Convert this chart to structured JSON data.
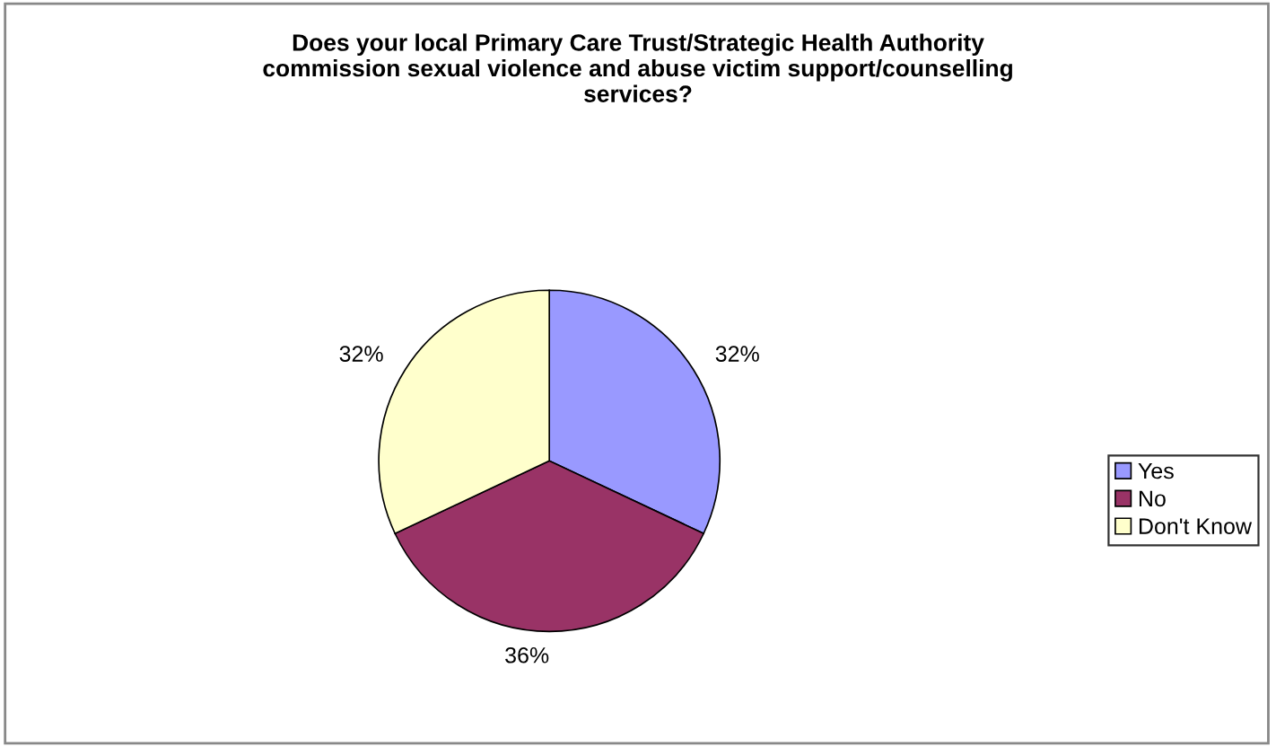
{
  "chart_data": {
    "type": "pie",
    "title": "Does your local Primary Care Trust/Strategic Health Authority\ncommission sexual violence and abuse victim support/counselling\nservices?",
    "categories": [
      "Yes",
      "No",
      "Don't Know"
    ],
    "values": [
      32,
      36,
      32
    ],
    "colors": [
      "#9999ff",
      "#993366",
      "#ffffcc"
    ],
    "value_labels": [
      "32%",
      "36%",
      "32%"
    ],
    "legend": "right"
  }
}
